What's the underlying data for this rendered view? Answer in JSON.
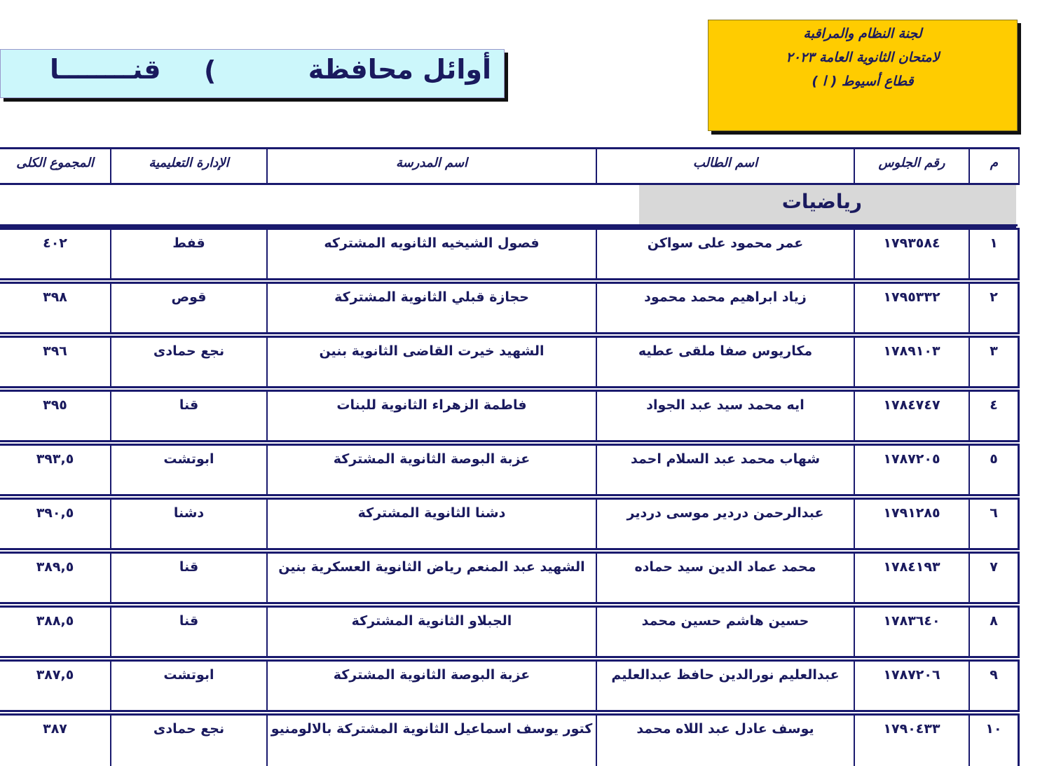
{
  "committee_box": {
    "line1": "لجنة النظام والمراقبة",
    "line2": "لامتحان الثانوية العامة ٢٠٢٣",
    "line3": "قطاع أسيوط ( ا )"
  },
  "title": {
    "prefix": "أوائل محافظة",
    "paren": "(",
    "governorate": "قنــــــــا"
  },
  "colors": {
    "accent": "#1a1a6e",
    "committee_bg": "#ffcc00",
    "title_bg": "#ccf7fb",
    "subject_bg": "#d8d8d8"
  },
  "table": {
    "headers": {
      "index": "م",
      "seat": "رقم الجلوس",
      "student": "اسم الطالب",
      "school": "اسم المدرسة",
      "admin": "الإدارة التعليمية",
      "total": "المجموع الكلى"
    },
    "subject": "رياضيات",
    "rows": [
      {
        "index": "١",
        "seat": "١٧٩٣٥٨٤",
        "student": "عمر محمود على سواكن",
        "school": "فصول الشيخيه الثانويه المشتركه",
        "admin": "قفط",
        "total": "٤٠٢"
      },
      {
        "index": "٢",
        "seat": "١٧٩٥٣٣٢",
        "student": "زياد ابراهيم محمد محمود",
        "school": "حجازة قبلي الثانوية المشتركة",
        "admin": "قوص",
        "total": "٣٩٨"
      },
      {
        "index": "٣",
        "seat": "١٧٨٩١٠٣",
        "student": "مكاريوس صفا ملقى عطيه",
        "school": "الشهيد خيرت القاضى الثانوية بنين",
        "admin": "نجع حمادى",
        "total": "٣٩٦"
      },
      {
        "index": "٤",
        "seat": "١٧٨٤٧٤٧",
        "student": "ايه محمد سيد عبد الجواد",
        "school": "فاطمة الزهراء الثانوية للبنات",
        "admin": "قنا",
        "total": "٣٩٥"
      },
      {
        "index": "٥",
        "seat": "١٧٨٧٢٠٥",
        "student": "شهاب محمد عبد السلام احمد",
        "school": "عزبة البوصة الثانوية المشتركة",
        "admin": "ابوتشت",
        "total": "٣٩٣,٥"
      },
      {
        "index": "٦",
        "seat": "١٧٩١٢٨٥",
        "student": "عبدالرحمن دردير موسى دردير",
        "school": "دشنا الثانوية المشتركة",
        "admin": "دشنا",
        "total": "٣٩٠,٥"
      },
      {
        "index": "٧",
        "seat": "١٧٨٤١٩٣",
        "student": "محمد عماد الدين سيد حماده",
        "school": "الشهيد عبد المنعم رياض الثانوية العسكرية بنين",
        "admin": "قنا",
        "total": "٣٨٩,٥"
      },
      {
        "index": "٨",
        "seat": "١٧٨٣٦٤٠",
        "student": "حسين هاشم حسين محمد",
        "school": "الجبلاو الثانوية المشتركة",
        "admin": "قنا",
        "total": "٣٨٨,٥"
      },
      {
        "index": "٩",
        "seat": "١٧٨٧٢٠٦",
        "student": "عبدالعليم نورالدين حافظ عبدالعليم",
        "school": "عزبة البوصة الثانوية المشتركة",
        "admin": "ابوتشت",
        "total": "٣٨٧,٥"
      },
      {
        "index": "١٠",
        "seat": "١٧٩٠٤٣٣",
        "student": "يوسف عادل عبد اللاه محمد",
        "school": "كتور يوسف اسماعيل الثانوية المشتركة بالالومنيو",
        "admin": "نجع حمادى",
        "total": "٣٨٧"
      }
    ]
  }
}
